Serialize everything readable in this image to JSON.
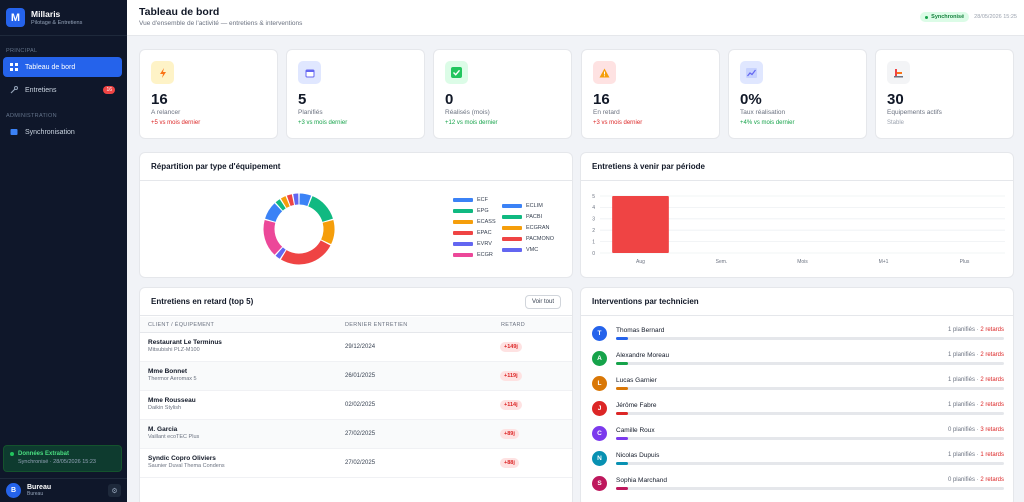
{
  "sidebar": {
    "logo_letter": "M",
    "app_name": "Millaris",
    "app_subtitle": "Pilotage & Entretiens",
    "section_main": "PRINCIPAL",
    "section_admin": "ADMINISTRATION",
    "items": [
      {
        "label": "Tableau de bord",
        "icon": "dashboard-icon"
      },
      {
        "label": "Entretiens",
        "icon": "wrench-icon",
        "badge": "16"
      },
      {
        "label": "Synchronisation",
        "icon": "sync-icon"
      }
    ],
    "sync_box": {
      "title": "Données Extrabat",
      "subtitle": "Synchronisé · 28/05/2026 15:23"
    },
    "user": {
      "initial": "B",
      "name": "Bureau",
      "role": "Bureau"
    }
  },
  "header": {
    "title": "Tableau de bord",
    "subtitle": "Vue d'ensemble de l'activité — entretiens & interventions",
    "status": "Synchronisé",
    "date": "28/05/2026 15:25"
  },
  "kpis": [
    {
      "value": "16",
      "label": "A relancer",
      "trend": "+5 vs mois dernier",
      "icon": "lightning-icon"
    },
    {
      "value": "5",
      "label": "Planifiés",
      "trend": "+3 vs mois dernier",
      "icon": "calendar-icon"
    },
    {
      "value": "0",
      "label": "Réalisés (mois)",
      "trend": "+12 vs mois dernier",
      "icon": "check-icon"
    },
    {
      "value": "16",
      "label": "En retard",
      "trend": "+3 vs mois dernier",
      "icon": "warning-icon"
    },
    {
      "value": "0%",
      "label": "Taux réalisation",
      "trend": "+4% vs mois dernier",
      "icon": "chart-icon"
    },
    {
      "value": "30",
      "label": "Equipements actifs",
      "trend": "Stable",
      "icon": "equipment-icon"
    }
  ],
  "donut_panel": {
    "title": "Répartition par type d'équipement"
  },
  "bar_panel": {
    "title": "Entretiens à venir par période"
  },
  "late_panel": {
    "title": "Entretiens en retard (top 5)",
    "button": "Voir tout",
    "columns": [
      "CLIENT / ÉQUIPEMENT",
      "DERNIER ENTRETIEN",
      "RETARD"
    ],
    "rows": [
      {
        "client": "Restaurant Le Terminus",
        "equipment": "Mitsubishi PLZ-M100",
        "date": "29/12/2024",
        "late": "+149j"
      },
      {
        "client": "Mme Bonnet",
        "equipment": "Thermor Aeromax 5",
        "date": "26/01/2025",
        "late": "+119j"
      },
      {
        "client": "Mme Rousseau",
        "equipment": "Daikin Stylish",
        "date": "02/02/2025",
        "late": "+114j"
      },
      {
        "client": "M. Garcia",
        "equipment": "Vaillant ecoTEC Plus",
        "date": "27/02/2025",
        "late": "+89j"
      },
      {
        "client": "Syndic Copro Oliviers",
        "equipment": "Saunier Duval Thema Condens",
        "date": "27/02/2025",
        "late": "+88j"
      }
    ]
  },
  "tech_panel": {
    "title": "Interventions par technicien",
    "techs": [
      {
        "initial": "T",
        "name": "Thomas Bernard",
        "planned": "1 planifiés",
        "late": "2 retards",
        "color": "#2563eb"
      },
      {
        "initial": "A",
        "name": "Alexandre Moreau",
        "planned": "1 planifiés",
        "late": "2 retards",
        "color": "#16a34a"
      },
      {
        "initial": "L",
        "name": "Lucas Garnier",
        "planned": "1 planifiés",
        "late": "2 retards",
        "color": "#d97706"
      },
      {
        "initial": "J",
        "name": "Jérôme Fabre",
        "planned": "1 planifiés",
        "late": "2 retards",
        "color": "#dc2626"
      },
      {
        "initial": "C",
        "name": "Camille Roux",
        "planned": "0 planifiés",
        "late": "3 retards",
        "color": "#7c3aed"
      },
      {
        "initial": "N",
        "name": "Nicolas Dupuis",
        "planned": "1 planifiés",
        "late": "1 retards",
        "color": "#0891b2"
      },
      {
        "initial": "S",
        "name": "Sophia Marchand",
        "planned": "0 planifiés",
        "late": "2 retards",
        "color": "#be185d"
      }
    ],
    "separator": "·"
  },
  "chart_data": [
    {
      "type": "pie",
      "legend_position": "right",
      "categories": [
        "ECF",
        "ECLIM",
        "EPG",
        "PACBI",
        "ECASS",
        "ECGRAN",
        "EPAC",
        "PACMONO",
        "EVRV",
        "VMC",
        "ECGR"
      ],
      "colors": [
        "#3b82f6",
        "#3b82f6",
        "#10b981",
        "#10b981",
        "#f59e0b",
        "#f59e0b",
        "#ef4444",
        "#ef4444",
        "#6366f1",
        "#6366f1",
        "#ec4899"
      ],
      "slices": [
        {
          "color": "#3b82f6",
          "value": 2
        },
        {
          "color": "#10b981",
          "value": 5
        },
        {
          "color": "#f59e0b",
          "value": 4
        },
        {
          "color": "#ef4444",
          "value": 9
        },
        {
          "color": "#6366f1",
          "value": 1
        },
        {
          "color": "#ec4899",
          "value": 6
        },
        {
          "color": "#3b82f6",
          "value": 3
        },
        {
          "color": "#10b981",
          "value": 1
        },
        {
          "color": "#f59e0b",
          "value": 1
        },
        {
          "color": "#ef4444",
          "value": 1
        },
        {
          "color": "#6366f1",
          "value": 1
        }
      ]
    },
    {
      "type": "bar",
      "categories": [
        "Aug",
        "Sem.",
        "Mois",
        "M+1",
        "Plus"
      ],
      "values": [
        5,
        0,
        0,
        0,
        0
      ],
      "ylim": [
        0,
        5
      ],
      "yticks": [
        "0",
        "1",
        "2",
        "3",
        "4",
        "5"
      ],
      "color": "#ef4444",
      "grid": true
    }
  ]
}
